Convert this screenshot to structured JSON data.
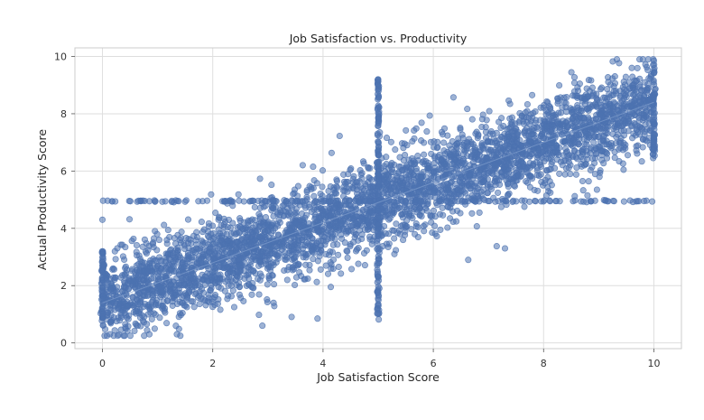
{
  "chart_data": {
    "type": "scatter",
    "title": "Job Satisfaction vs. Productivity",
    "xlabel": "Job Satisfaction Score",
    "ylabel": "Actual Productivity Score",
    "xlim": [
      -0.5,
      10.5
    ],
    "ylim": [
      -0.2,
      10.3
    ],
    "xticks": [
      0,
      2,
      4,
      6,
      8,
      10
    ],
    "yticks": [
      0,
      2,
      4,
      6,
      8,
      10
    ],
    "grid": true,
    "point_color": "#4c72b0",
    "trend": {
      "slope": 0.7,
      "intercept": 1.4
    },
    "clusters": [
      {
        "description": "main diagonal cloud",
        "x_range": [
          0,
          10
        ],
        "y_spread": 0.75
      },
      {
        "description": "horizontal band",
        "y": 4.95,
        "x_range": [
          0,
          10
        ]
      },
      {
        "description": "vertical band",
        "x": 5,
        "y_range": [
          0.6,
          9.2
        ]
      },
      {
        "description": "vertical band",
        "x": 0,
        "y_range": [
          0.5,
          3.3
        ]
      },
      {
        "description": "vertical band",
        "x": 10,
        "y_range": [
          6.4,
          9.8
        ]
      }
    ],
    "sample_points": [
      {
        "x": 10,
        "y": 9.85
      },
      {
        "x": 9.6,
        "y": 9.6
      },
      {
        "x": 5,
        "y": 9.2
      },
      {
        "x": 0.85,
        "y": 0.3
      },
      {
        "x": 1.35,
        "y": 0.3
      },
      {
        "x": 3.9,
        "y": 0.85
      },
      {
        "x": 0,
        "y": 4.3
      },
      {
        "x": 7.3,
        "y": 3.3
      },
      {
        "x": 2.9,
        "y": 0.6
      }
    ]
  }
}
